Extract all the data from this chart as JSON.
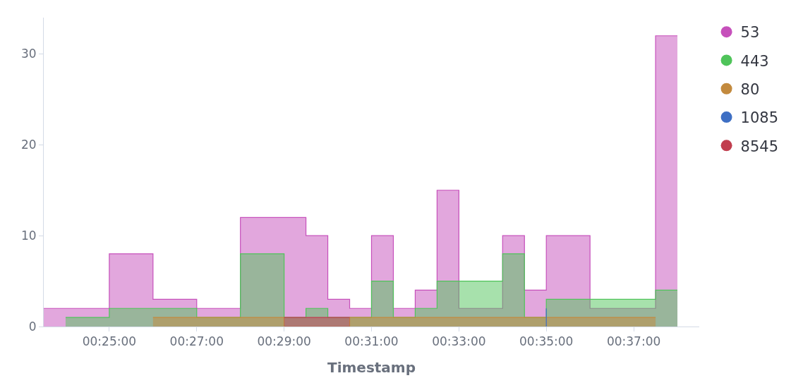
{
  "chart_data": {
    "type": "area",
    "xlabel": "Timestamp",
    "series": [
      {
        "name": "53",
        "color": "#c650bb",
        "x": [
          0.391667,
          0.416667,
          0.416667,
          0.433333,
          0.433333,
          0.45,
          0.45,
          0.466667,
          0.466667,
          0.491667,
          0.491667,
          0.5,
          0.5,
          0.508333,
          0.508333,
          0.516667,
          0.516667,
          0.525,
          0.525,
          0.533333,
          0.533333,
          0.541667,
          0.541667,
          0.55,
          0.55,
          0.566667,
          0.566667,
          0.575,
          0.575,
          0.583333,
          0.583333,
          0.6,
          0.6,
          0.625,
          0.625,
          0.633333
        ],
        "values": [
          2,
          2,
          8,
          8,
          3,
          3,
          2,
          2,
          12,
          12,
          10,
          10,
          3,
          3,
          2,
          2,
          10,
          10,
          2,
          2,
          4,
          4,
          15,
          15,
          2,
          2,
          10,
          10,
          4,
          4,
          10,
          10,
          2,
          2,
          32,
          32
        ]
      },
      {
        "name": "443",
        "color": "#4fc45a",
        "x": [
          0.4,
          0.416667,
          0.416667,
          0.45,
          0.45,
          0.466667,
          0.466667,
          0.483333,
          0.483333,
          0.491667,
          0.491667,
          0.5,
          0.5,
          0.516667,
          0.516667,
          0.525,
          0.525,
          0.533333,
          0.533333,
          0.541667,
          0.541667,
          0.566667,
          0.566667,
          0.575,
          0.575,
          0.583333,
          0.583333,
          0.625,
          0.625,
          0.633333
        ],
        "values": [
          1,
          1,
          2,
          2,
          1,
          1,
          8,
          8,
          1,
          1,
          2,
          2,
          1,
          1,
          5,
          5,
          1,
          1,
          2,
          2,
          5,
          5,
          8,
          8,
          1,
          1,
          3,
          3,
          4,
          4
        ]
      },
      {
        "name": "80",
        "color": "#c38a3e",
        "x": [
          0.433333,
          0.483333,
          0.483333,
          0.508333,
          0.508333,
          0.625
        ],
        "values": [
          1,
          1,
          0,
          0,
          1,
          1
        ]
      },
      {
        "name": "1085",
        "color": "#3e6fc4",
        "type": "line",
        "x": [
          0.583333,
          0.583333
        ],
        "values": [
          0,
          2
        ]
      },
      {
        "name": "8545",
        "color": "#c13e4e",
        "x": [
          0.483333,
          0.508333
        ],
        "values": [
          1,
          1
        ]
      }
    ],
    "xlim": [
      0.391667,
      0.641667
    ],
    "xticks": [
      {
        "value": 0.416667,
        "label": "00:25:00"
      },
      {
        "value": 0.45,
        "label": "00:27:00"
      },
      {
        "value": 0.483333,
        "label": "00:29:00"
      },
      {
        "value": 0.516667,
        "label": "00:31:00"
      },
      {
        "value": 0.55,
        "label": "00:33:00"
      },
      {
        "value": 0.583333,
        "label": "00:35:00"
      },
      {
        "value": 0.616667,
        "label": "00:37:00"
      }
    ],
    "ylim": [
      0,
      34
    ],
    "yticks": [
      0,
      10,
      20,
      30
    ],
    "grid": false,
    "legend": "top right"
  }
}
